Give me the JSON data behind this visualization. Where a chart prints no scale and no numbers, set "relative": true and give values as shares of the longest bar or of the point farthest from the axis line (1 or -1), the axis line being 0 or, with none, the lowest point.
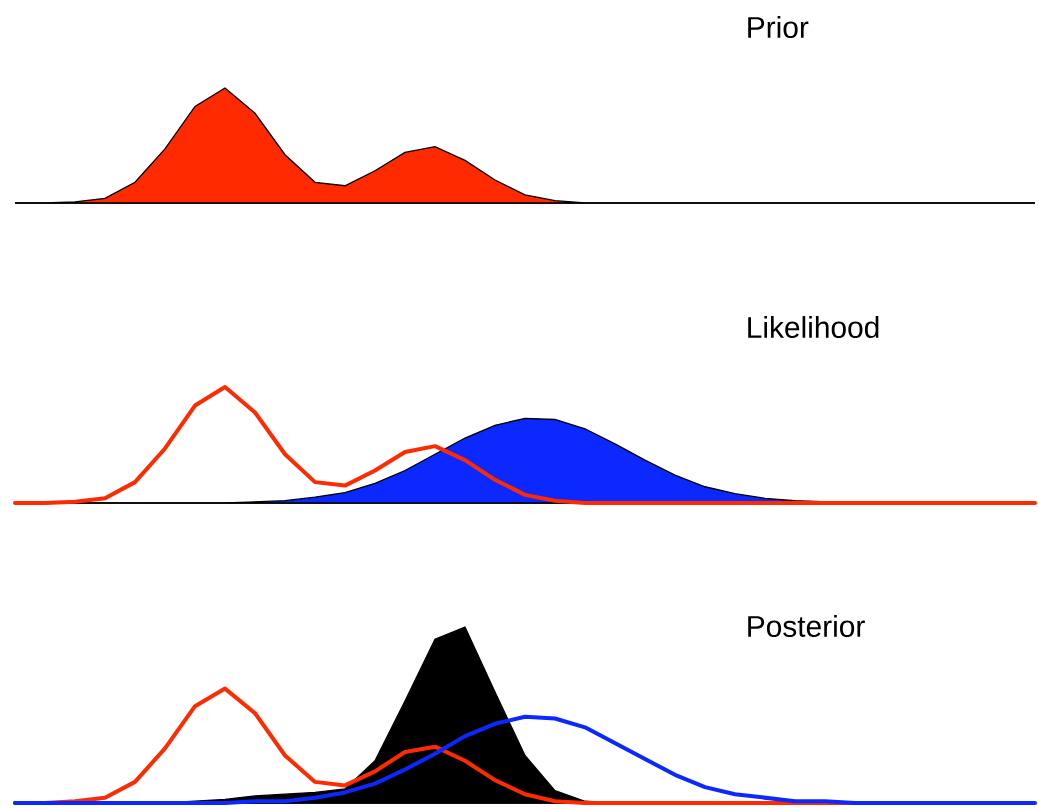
{
  "chart_data": [
    {
      "type": "area",
      "title": "Prior",
      "relative": true,
      "categories": [
        null,
        null,
        null,
        null,
        null,
        null,
        null,
        null,
        null,
        null,
        null,
        null,
        null,
        null,
        null,
        null,
        null,
        null,
        null,
        null,
        null,
        null,
        null,
        null,
        null,
        null,
        null,
        null,
        null,
        null,
        null,
        null,
        null,
        null,
        null
      ],
      "series": [
        {
          "color": "#ff2a00",
          "values": [
            0,
            0,
            0.01,
            0.04,
            0.18,
            0.47,
            0.84,
            1.0,
            0.78,
            0.42,
            0.18,
            0.15,
            0.28,
            0.44,
            0.49,
            0.37,
            0.2,
            0.07,
            0.02,
            0,
            0,
            0,
            0,
            0,
            0,
            0,
            0,
            0,
            0,
            0,
            0,
            0,
            0,
            0,
            0
          ]
        }
      ]
    },
    {
      "type": "area",
      "title": "Likelihood",
      "relative": true,
      "categories": [
        null,
        null,
        null,
        null,
        null,
        null,
        null,
        null,
        null,
        null,
        null,
        null,
        null,
        null,
        null,
        null,
        null,
        null,
        null,
        null,
        null,
        null,
        null,
        null,
        null,
        null,
        null,
        null,
        null,
        null,
        null,
        null,
        null,
        null,
        null
      ],
      "series": [
        {
          "color": "#0a28ff",
          "values": [
            0,
            0,
            0,
            0,
            0,
            0,
            0,
            0,
            0.01,
            0.02,
            0.05,
            0.09,
            0.17,
            0.28,
            0.42,
            0.56,
            0.67,
            0.73,
            0.72,
            0.64,
            0.51,
            0.37,
            0.24,
            0.14,
            0.08,
            0.04,
            0.02,
            0.01,
            0,
            0,
            0,
            0,
            0,
            0,
            0
          ]
        },
        {
          "type": "line",
          "color": "#ff2a00",
          "values": [
            0,
            0,
            0.01,
            0.04,
            0.18,
            0.47,
            0.84,
            1.0,
            0.78,
            0.42,
            0.18,
            0.15,
            0.28,
            0.44,
            0.49,
            0.37,
            0.2,
            0.07,
            0.02,
            0,
            0,
            0,
            0,
            0,
            0,
            0,
            0,
            0,
            0,
            0,
            0,
            0,
            0,
            0,
            0
          ]
        }
      ]
    },
    {
      "type": "area",
      "title": "Posterior",
      "relative": true,
      "categories": [
        null,
        null,
        null,
        null,
        null,
        null,
        null,
        null,
        null,
        null,
        null,
        null,
        null,
        null,
        null,
        null,
        null,
        null,
        null,
        null,
        null,
        null,
        null,
        null,
        null,
        null,
        null,
        null,
        null,
        null,
        null,
        null,
        null,
        null,
        null
      ],
      "series": [
        {
          "color": "#000000",
          "values": [
            0,
            0,
            0,
            0,
            0,
            0,
            0.01,
            0.02,
            0.04,
            0.05,
            0.06,
            0.08,
            0.24,
            0.58,
            0.93,
            1.0,
            0.63,
            0.27,
            0.07,
            0.01,
            0,
            0,
            0,
            0,
            0,
            0,
            0,
            0,
            0,
            0,
            0,
            0,
            0,
            0,
            0
          ]
        },
        {
          "type": "line",
          "color": "#ff2a00",
          "values": [
            0,
            0,
            0.01,
            0.03,
            0.12,
            0.31,
            0.55,
            0.65,
            0.51,
            0.27,
            0.12,
            0.1,
            0.18,
            0.29,
            0.32,
            0.24,
            0.13,
            0.05,
            0.01,
            0,
            0,
            0,
            0,
            0,
            0,
            0,
            0,
            0,
            0,
            0,
            null,
            null,
            null,
            null,
            null
          ]
        },
        {
          "type": "line",
          "color": "#0a28ff",
          "values": [
            0,
            0,
            0,
            0,
            0,
            0,
            0,
            0,
            0.01,
            0.01,
            0.03,
            0.06,
            0.11,
            0.19,
            0.28,
            0.38,
            0.45,
            0.49,
            0.48,
            0.43,
            0.34,
            0.25,
            0.16,
            0.09,
            0.05,
            0.03,
            0.01,
            0.01,
            0,
            0,
            0,
            0,
            0,
            0,
            0
          ]
        }
      ]
    }
  ]
}
